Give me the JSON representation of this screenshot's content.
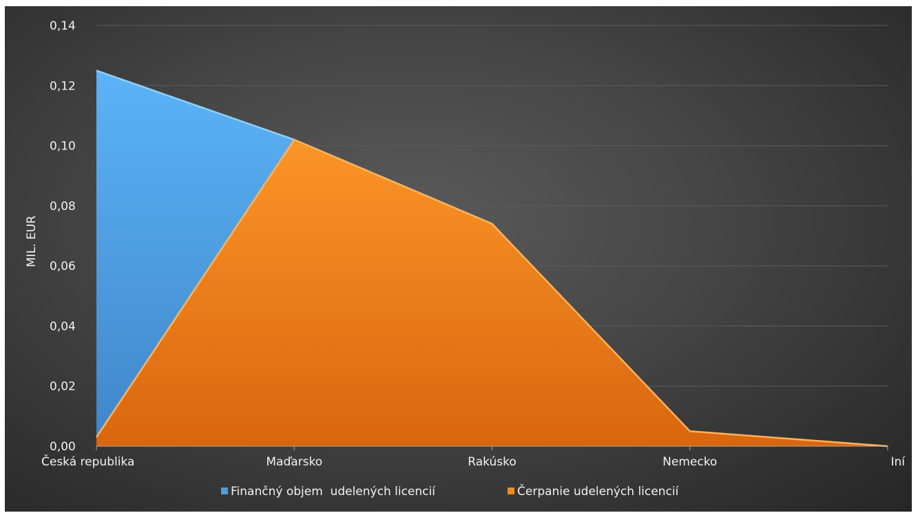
{
  "chart_data": {
    "type": "area",
    "categories": [
      "Česká republika",
      "Maďarsko",
      "Rakúsko",
      "Nemecko",
      "Iní"
    ],
    "series": [
      {
        "name": "Finančný objem  udelených licencií",
        "values": [
          0.125,
          0.102,
          0.074,
          0.004,
          0.0
        ],
        "color": "#4a9fe3"
      },
      {
        "name": "Čerpanie udelených licencií",
        "values": [
          0.003,
          0.102,
          0.074,
          0.005,
          0.0
        ],
        "color": "#f28a1e"
      }
    ],
    "ylabel": "MIL. EUR",
    "ylim": [
      0,
      0.14
    ],
    "yticks": [
      "0,00",
      "0,02",
      "0,04",
      "0,06",
      "0,08",
      "0,10",
      "0,12",
      "0,14"
    ],
    "grid": true,
    "legend_position": "bottom"
  }
}
